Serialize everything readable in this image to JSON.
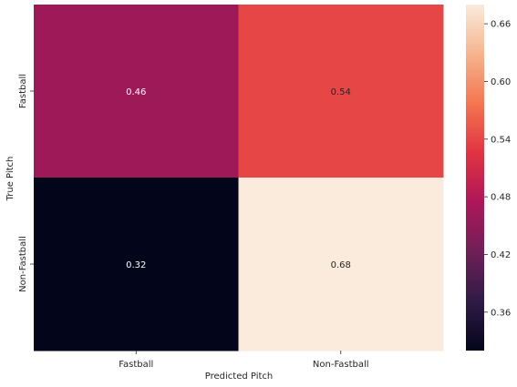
{
  "chart_data": {
    "type": "heatmap",
    "title": "",
    "xlabel": "Predicted Pitch",
    "ylabel": "True Pitch",
    "x_categories": [
      "Fastball",
      "Non-Fastball"
    ],
    "y_categories": [
      "Fastball",
      "Non-Fastball"
    ],
    "values": [
      [
        0.46,
        0.54
      ],
      [
        0.32,
        0.68
      ]
    ],
    "value_labels": [
      [
        "0.46",
        "0.54"
      ],
      [
        "0.32",
        "0.68"
      ]
    ],
    "colorbar": {
      "min": 0.32,
      "max": 0.68,
      "ticks": [
        0.36,
        0.42,
        0.48,
        0.54,
        0.6,
        0.66
      ],
      "tick_labels": [
        "0.36",
        "0.42",
        "0.48",
        "0.54",
        "0.60",
        "0.66"
      ]
    },
    "colormap": "rocket",
    "colormap_stops": [
      "#03051a",
      "#2f1b46",
      "#701f57",
      "#ae1759",
      "#e13342",
      "#f37651",
      "#f6b48e",
      "#faebdd"
    ]
  }
}
